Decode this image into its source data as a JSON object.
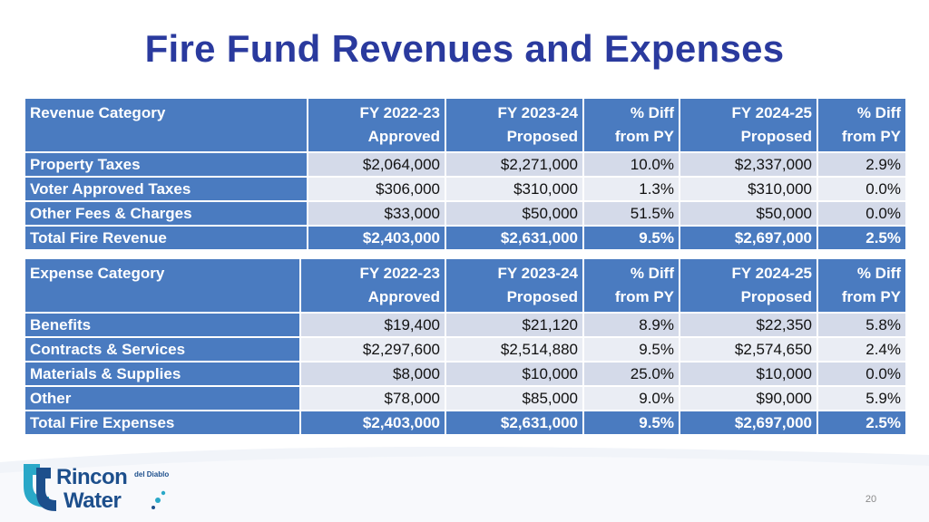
{
  "title": "Fire Fund Revenues and Expenses",
  "revenue": {
    "headers": [
      "Revenue Category",
      "FY 2022-23\nApproved",
      "FY 2023-24\nProposed",
      "% Diff\nfrom PY",
      "FY 2024-25\nProposed",
      "% Diff\nfrom PY"
    ],
    "rows": [
      [
        "Property Taxes",
        "$2,064,000",
        "$2,271,000",
        "10.0%",
        "$2,337,000",
        "2.9%"
      ],
      [
        "Voter Approved Taxes",
        "$306,000",
        "$310,000",
        "1.3%",
        "$310,000",
        "0.0%"
      ],
      [
        "Other Fees & Charges",
        "$33,000",
        "$50,000",
        "51.5%",
        "$50,000",
        "0.0%"
      ]
    ],
    "total": [
      "Total Fire Revenue",
      "$2,403,000",
      "$2,631,000",
      "9.5%",
      "$2,697,000",
      "2.5%"
    ]
  },
  "expense": {
    "headers": [
      "Expense Category",
      "FY 2022-23\nApproved",
      "FY 2023-24\nProposed",
      "% Diff\nfrom PY",
      "FY 2024-25\nProposed",
      "% Diff\nfrom PY"
    ],
    "rows": [
      [
        "Benefits",
        "$19,400",
        "$21,120",
        "8.9%",
        "$22,350",
        "5.8%"
      ],
      [
        "Contracts & Services",
        "$2,297,600",
        "$2,514,880",
        "9.5%",
        "$2,574,650",
        "2.4%"
      ],
      [
        "Materials & Supplies",
        "$8,000",
        "$10,000",
        "25.0%",
        "$10,000",
        "0.0%"
      ],
      [
        "Other",
        "$78,000",
        "$85,000",
        "9.0%",
        "$90,000",
        "5.9%"
      ]
    ],
    "total": [
      "Total Fire Expenses",
      "$2,403,000",
      "$2,631,000",
      "9.5%",
      "$2,697,000",
      "2.5%"
    ]
  },
  "logo": {
    "name_line1": "Rincon",
    "name_small": "del Diablo",
    "name_line2": "Water",
    "icon": "rincon-water-logo-icon"
  },
  "page_number": "20",
  "colors": {
    "title": "#2a3a9e",
    "header_fill": "#4a7bc0",
    "row_band_dark": "#d4dae9",
    "row_band_light": "#eaedf4",
    "logo_blue": "#1d4f8c",
    "logo_teal": "#2aa8c8"
  }
}
